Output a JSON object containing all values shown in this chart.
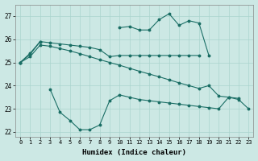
{
  "xlabel": "Humidex (Indice chaleur)",
  "bg_color": "#cce8e4",
  "line_color": "#1a6e65",
  "grid_color": "#aad4ce",
  "ylim": [
    21.8,
    27.5
  ],
  "yticks": [
    22,
    23,
    24,
    25,
    26,
    27
  ],
  "xticks": [
    0,
    1,
    2,
    3,
    4,
    5,
    6,
    7,
    8,
    9,
    10,
    11,
    12,
    13,
    14,
    15,
    16,
    17,
    18,
    19,
    20,
    21,
    22,
    23
  ],
  "top_y": [
    25.0,
    25.4,
    25.9,
    null,
    null,
    null,
    null,
    null,
    null,
    null,
    26.5,
    26.55,
    26.4,
    26.4,
    26.85,
    27.1,
    26.6,
    26.8,
    26.7,
    25.3,
    null,
    null,
    null,
    null
  ],
  "mid_y": [
    25.0,
    25.35,
    25.9,
    25.85,
    25.8,
    25.75,
    25.7,
    25.65,
    25.55,
    25.25,
    25.3,
    25.3,
    25.3,
    25.3,
    25.3,
    25.3,
    25.3,
    25.3,
    25.3,
    null,
    null,
    null,
    null,
    null
  ],
  "low_y": [
    25.0,
    25.25,
    25.75,
    25.7,
    25.6,
    25.5,
    25.38,
    25.25,
    25.12,
    25.0,
    24.88,
    24.75,
    24.62,
    24.5,
    24.38,
    24.25,
    24.12,
    24.0,
    23.88,
    24.0,
    23.55,
    23.5,
    23.45,
    null
  ],
  "bot_y": [
    null,
    null,
    null,
    23.85,
    22.85,
    22.5,
    22.1,
    22.1,
    22.3,
    23.35,
    23.6,
    23.5,
    23.4,
    23.35,
    23.3,
    23.25,
    23.2,
    23.15,
    23.1,
    23.05,
    23.0,
    23.5,
    23.4,
    23.0
  ]
}
